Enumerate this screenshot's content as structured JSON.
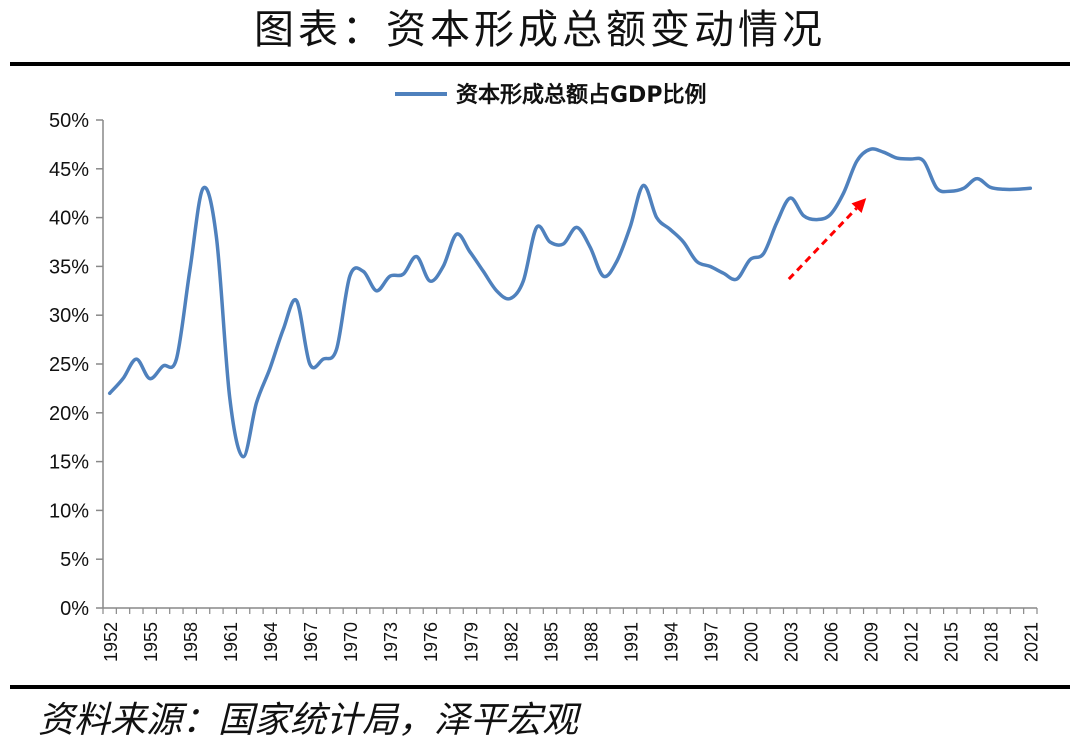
{
  "page": {
    "title": "图表：资本形成总额变动情况",
    "source": "资料来源：国家统计局，泽平宏观"
  },
  "chart_data": {
    "type": "line",
    "title": "",
    "xlabel": "",
    "ylabel": "",
    "ylim": [
      0,
      50
    ],
    "y_ticks": [
      0,
      5,
      10,
      15,
      20,
      25,
      30,
      35,
      40,
      45,
      50
    ],
    "y_tick_labels": [
      "0%",
      "5%",
      "10%",
      "15%",
      "20%",
      "25%",
      "30%",
      "35%",
      "40%",
      "45%",
      "50%"
    ],
    "x_tick_labels": [
      "1952",
      "1955",
      "1958",
      "1961",
      "1964",
      "1967",
      "1970",
      "1973",
      "1976",
      "1979",
      "1982",
      "1985",
      "1988",
      "1991",
      "1994",
      "1997",
      "2000",
      "2003",
      "2006",
      "2009",
      "2012",
      "2015",
      "2018",
      "2021"
    ],
    "grid": false,
    "legend_position": "top-center",
    "line_color": "#4F81BD",
    "annotation_arrow_color": "#FF0000",
    "series": [
      {
        "name": "资本形成总额占GDP比例",
        "x": [
          1952,
          1953,
          1954,
          1955,
          1956,
          1957,
          1958,
          1959,
          1960,
          1961,
          1962,
          1963,
          1964,
          1965,
          1966,
          1967,
          1968,
          1969,
          1970,
          1971,
          1972,
          1973,
          1974,
          1975,
          1976,
          1977,
          1978,
          1979,
          1980,
          1981,
          1982,
          1983,
          1984,
          1985,
          1986,
          1987,
          1988,
          1989,
          1990,
          1991,
          1992,
          1993,
          1994,
          1995,
          1996,
          1997,
          1998,
          1999,
          2000,
          2001,
          2002,
          2003,
          2004,
          2005,
          2006,
          2007,
          2008,
          2009,
          2010,
          2011,
          2012,
          2013,
          2014,
          2015,
          2016,
          2017,
          2018,
          2019,
          2020,
          2021
        ],
        "values": [
          22.0,
          23.5,
          25.5,
          23.5,
          24.8,
          25.5,
          34.5,
          43.0,
          38.0,
          21.5,
          15.5,
          21.0,
          24.5,
          28.5,
          31.5,
          25.0,
          25.5,
          26.5,
          34.0,
          34.5,
          32.5,
          34.0,
          34.2,
          36.0,
          33.5,
          35.0,
          38.3,
          36.5,
          34.5,
          32.5,
          31.7,
          33.5,
          39.0,
          37.5,
          37.3,
          39.0,
          37.0,
          34.0,
          35.5,
          39.0,
          43.3,
          40.0,
          38.8,
          37.5,
          35.5,
          35.0,
          34.3,
          33.7,
          35.7,
          36.3,
          39.5,
          42.0,
          40.2,
          39.8,
          40.3,
          42.5,
          45.8,
          47.0,
          46.7,
          46.1,
          46.0,
          45.8,
          43.0,
          42.7,
          43.0,
          44.0,
          43.1,
          42.9,
          42.9,
          43.0
        ]
      }
    ]
  }
}
